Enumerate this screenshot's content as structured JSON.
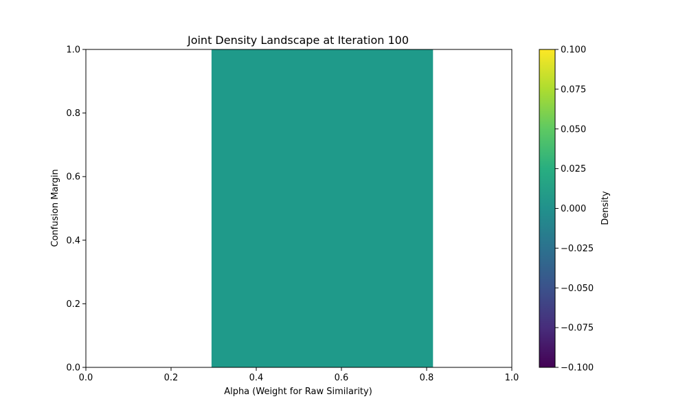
{
  "chart_data": {
    "type": "heatmap",
    "title": "Joint Density Landscape at Iteration 100",
    "xlabel": "Alpha (Weight for Raw Similarity)",
    "ylabel": "Confusion Margin",
    "xlim": [
      0.0,
      1.0
    ],
    "ylim": [
      0.0,
      1.0
    ],
    "x_ticks": [
      "0.0",
      "0.2",
      "0.4",
      "0.6",
      "0.8",
      "1.0"
    ],
    "y_ticks": [
      "0.0",
      "0.2",
      "0.4",
      "0.6",
      "0.8",
      "1.0"
    ],
    "grid": false,
    "regions": [
      {
        "x_range": [
          0.295,
          0.815
        ],
        "y_range": [
          0.0,
          1.0
        ],
        "value": 0.0,
        "color": "#1f9a8a"
      }
    ],
    "colorbar": {
      "label": "Density",
      "colormap": "viridis",
      "range": [
        -0.1,
        0.1
      ],
      "ticks": [
        "0.100",
        "0.075",
        "0.050",
        "0.025",
        "0.000",
        "−0.025",
        "−0.050",
        "−0.075",
        "−0.100"
      ],
      "tick_values": [
        0.1,
        0.075,
        0.05,
        0.025,
        0.0,
        -0.025,
        -0.05,
        -0.075,
        -0.1
      ]
    }
  }
}
